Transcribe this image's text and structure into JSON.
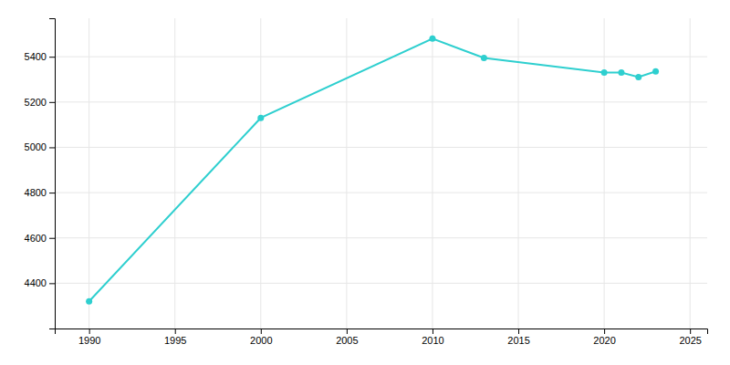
{
  "chart_data": {
    "type": "line",
    "x": [
      1990,
      2000,
      2010,
      2013,
      2020,
      2021,
      2022,
      2023
    ],
    "values": [
      4320,
      5130,
      5480,
      5395,
      5330,
      5330,
      5310,
      5335
    ],
    "color": "#2ecfcf",
    "marker": "circle",
    "xlim": [
      1988,
      2026
    ],
    "ylim": [
      4200,
      5570
    ],
    "xticks": [
      1990,
      1995,
      2000,
      2005,
      2010,
      2015,
      2020,
      2025
    ],
    "yticks": [
      4400,
      4600,
      4800,
      5000,
      5200,
      5400
    ],
    "grid": true
  }
}
